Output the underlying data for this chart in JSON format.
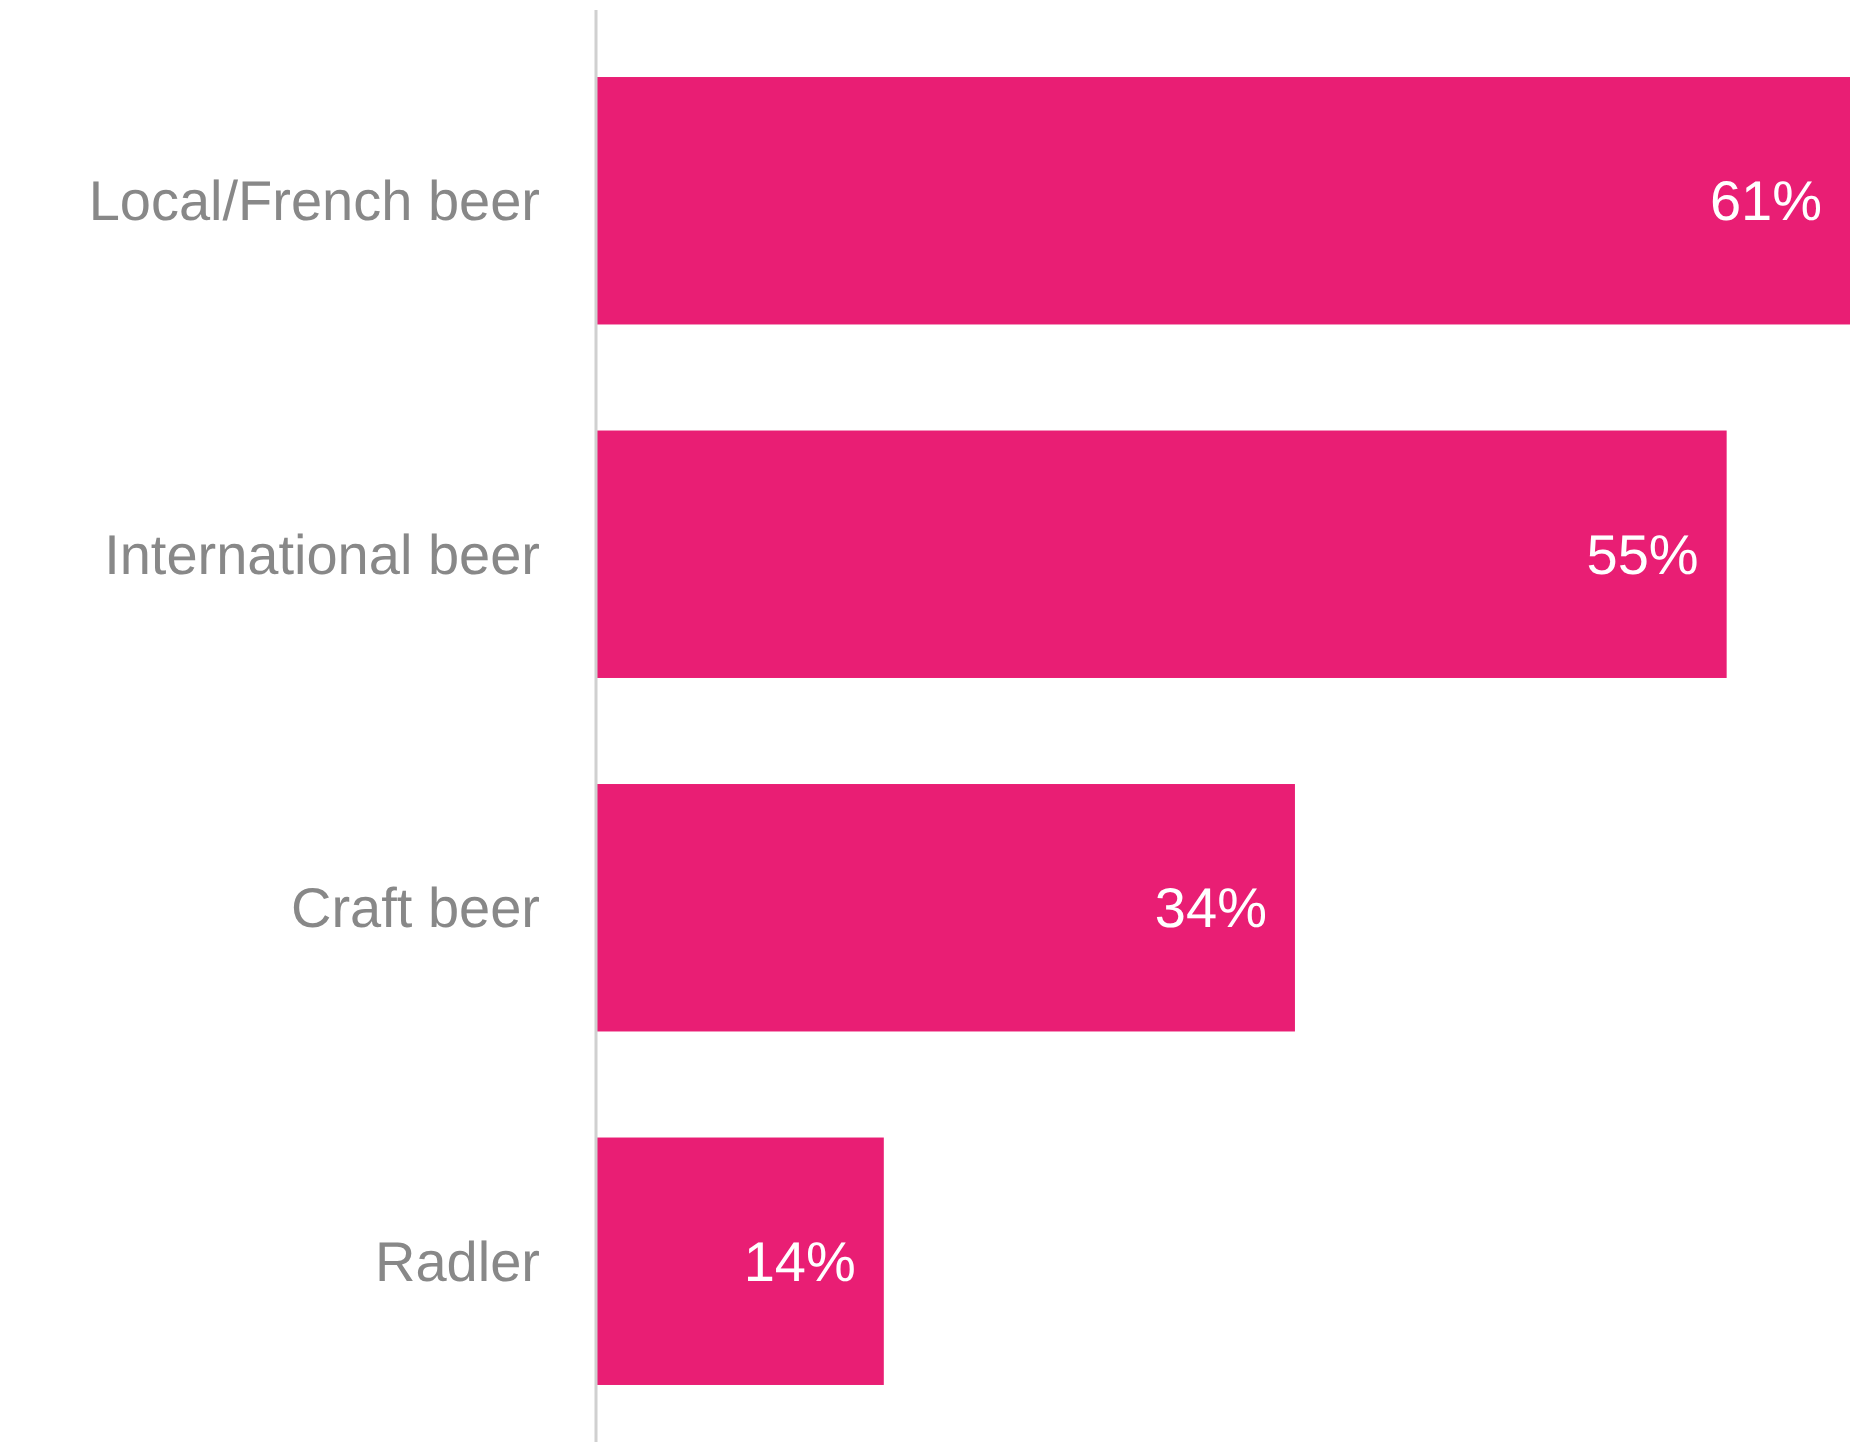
{
  "chart_data": {
    "type": "bar",
    "orientation": "horizontal",
    "categories": [
      "Local/French beer",
      "International beer",
      "Craft beer",
      "Radler"
    ],
    "values": [
      61,
      55,
      34,
      14
    ],
    "value_labels": [
      "61%",
      "55%",
      "34%",
      "14%"
    ],
    "color": "#e91e74"
  }
}
